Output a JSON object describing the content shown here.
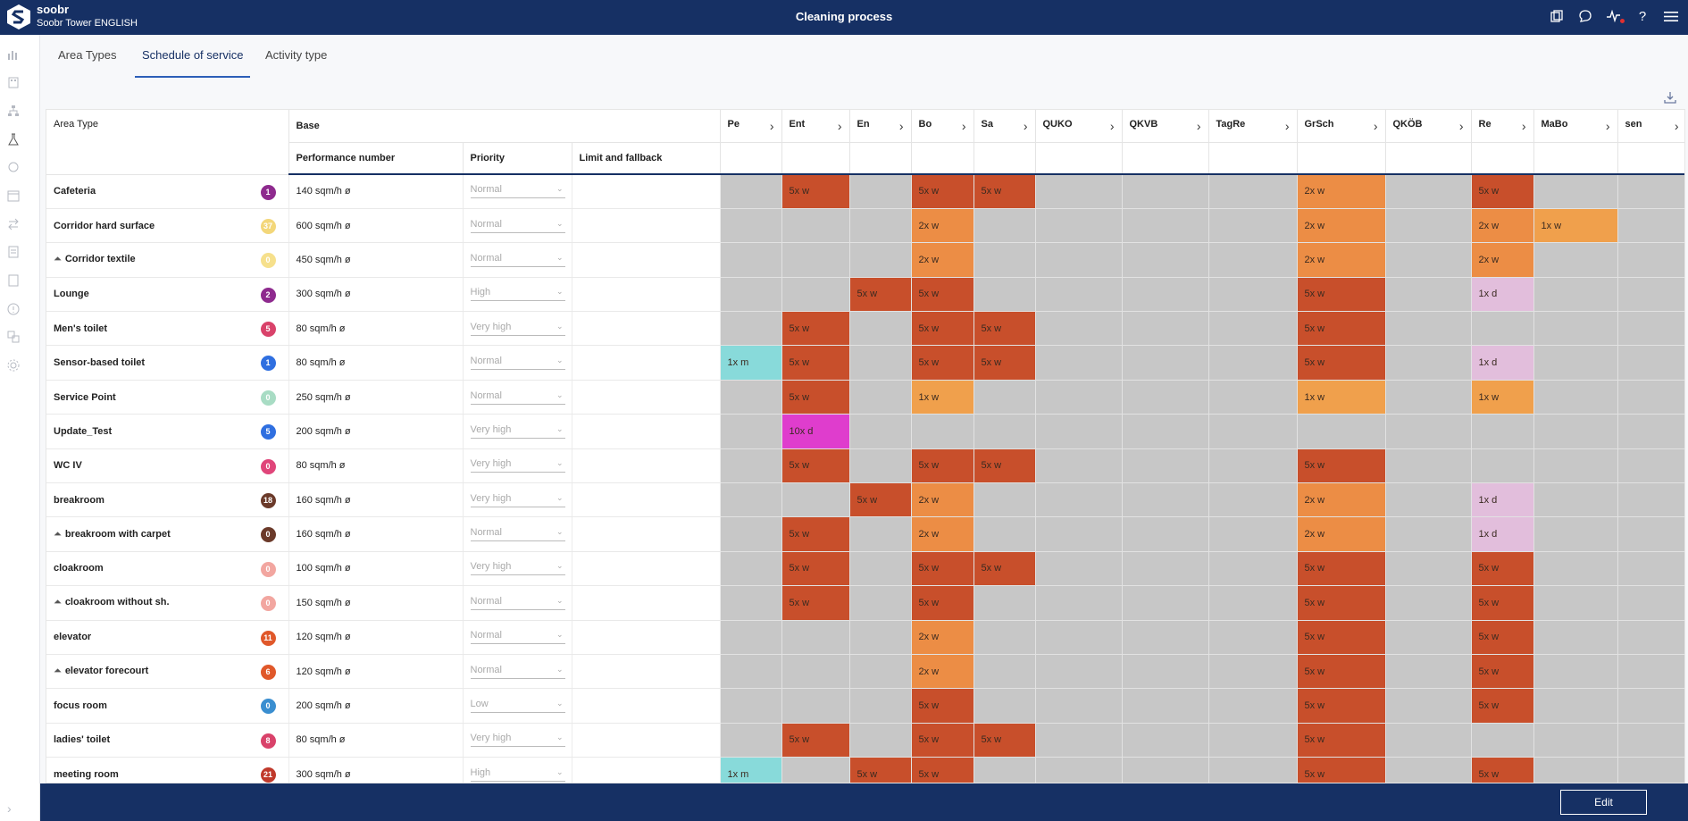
{
  "app": {
    "name": "soobr",
    "site": "Soobr Tower ENGLISH",
    "page_title": "Cleaning process"
  },
  "header_icons": [
    "copy-icon",
    "chat-icon",
    "activity-icon",
    "help-icon",
    "menu-icon"
  ],
  "tabs": [
    {
      "label": "Area Types",
      "active": false
    },
    {
      "label": "Schedule of service",
      "active": true
    },
    {
      "label": "Activity type",
      "active": false
    }
  ],
  "table": {
    "area_type_header": "Area Type",
    "base_header": "Base",
    "sub_headers": {
      "performance": "Performance number",
      "priority": "Priority",
      "limit": "Limit and fallback"
    },
    "activity_columns": [
      "Pe",
      "Ent",
      "En",
      "Bo",
      "Sa",
      "QUKO",
      "QKVB",
      "TagRe",
      "GrSch",
      "QKÖB",
      "Re",
      "MaBo",
      "sen"
    ],
    "rows": [
      {
        "name": "Cafeteria",
        "prefix": "",
        "count": "1",
        "count_color": "#8e2a8e",
        "perf": "140 sqm/h ø",
        "priority": "Normal",
        "cells": [
          [
            "",
            ""
          ],
          [
            "5x w",
            "dark"
          ],
          [
            "",
            ""
          ],
          [
            "5x w",
            "dark"
          ],
          [
            "5x w",
            "dark"
          ],
          [
            "",
            ""
          ],
          [
            "",
            ""
          ],
          [
            "",
            ""
          ],
          [
            "2x w",
            "orange"
          ],
          [
            "",
            ""
          ],
          [
            "5x w",
            "dark"
          ],
          [
            "",
            ""
          ],
          [
            "",
            ""
          ]
        ]
      },
      {
        "name": "Corridor hard surface",
        "prefix": "",
        "count": "37",
        "count_color": "#f3d77a",
        "perf": "600 sqm/h ø",
        "priority": "Normal",
        "cells": [
          [
            "",
            ""
          ],
          [
            "",
            ""
          ],
          [
            "",
            ""
          ],
          [
            "2x w",
            "orange"
          ],
          [
            "",
            ""
          ],
          [
            "",
            ""
          ],
          [
            "",
            ""
          ],
          [
            "",
            ""
          ],
          [
            "2x w",
            "orange"
          ],
          [
            "",
            ""
          ],
          [
            "2x w",
            "orange"
          ],
          [
            "1x w",
            "light"
          ],
          [
            "",
            ""
          ]
        ]
      },
      {
        "name": "Corridor textile",
        "prefix": "⏶",
        "count": "0",
        "count_color": "#f6e08c",
        "perf": "450 sqm/h ø",
        "priority": "Normal",
        "cells": [
          [
            "",
            ""
          ],
          [
            "",
            ""
          ],
          [
            "",
            ""
          ],
          [
            "2x w",
            "orange"
          ],
          [
            "",
            ""
          ],
          [
            "",
            ""
          ],
          [
            "",
            ""
          ],
          [
            "",
            ""
          ],
          [
            "2x w",
            "orange"
          ],
          [
            "",
            ""
          ],
          [
            "2x w",
            "orange"
          ],
          [
            "",
            ""
          ],
          [
            "",
            ""
          ]
        ]
      },
      {
        "name": "Lounge",
        "prefix": "",
        "count": "2",
        "count_color": "#8e2a8e",
        "perf": "300 sqm/h ø",
        "priority": "High",
        "cells": [
          [
            "",
            ""
          ],
          [
            "",
            ""
          ],
          [
            "5x w",
            "dark"
          ],
          [
            "5x w",
            "dark"
          ],
          [
            "",
            ""
          ],
          [
            "",
            ""
          ],
          [
            "",
            ""
          ],
          [
            "",
            ""
          ],
          [
            "5x w",
            "dark"
          ],
          [
            "",
            ""
          ],
          [
            "1x d",
            "pink"
          ],
          [
            "",
            ""
          ],
          [
            "",
            ""
          ]
        ]
      },
      {
        "name": "Men's toilet",
        "prefix": "",
        "count": "5",
        "count_color": "#d9426a",
        "perf": "80 sqm/h ø",
        "priority": "Very high",
        "cells": [
          [
            "",
            ""
          ],
          [
            "5x w",
            "dark"
          ],
          [
            "",
            ""
          ],
          [
            "5x w",
            "dark"
          ],
          [
            "5x w",
            "dark"
          ],
          [
            "",
            ""
          ],
          [
            "",
            ""
          ],
          [
            "",
            ""
          ],
          [
            "5x w",
            "dark"
          ],
          [
            "",
            ""
          ],
          [
            "",
            ""
          ],
          [
            "",
            ""
          ],
          [
            "",
            ""
          ]
        ]
      },
      {
        "name": "Sensor-based toilet",
        "prefix": "",
        "count": "1",
        "count_color": "#2f6fe0",
        "perf": "80 sqm/h ø",
        "priority": "Normal",
        "cells": [
          [
            "1x m",
            "cyan"
          ],
          [
            "5x w",
            "dark"
          ],
          [
            "",
            ""
          ],
          [
            "5x w",
            "dark"
          ],
          [
            "5x w",
            "dark"
          ],
          [
            "",
            ""
          ],
          [
            "",
            ""
          ],
          [
            "",
            ""
          ],
          [
            "5x w",
            "dark"
          ],
          [
            "",
            ""
          ],
          [
            "1x d",
            "pink"
          ],
          [
            "",
            ""
          ],
          [
            "",
            ""
          ]
        ]
      },
      {
        "name": "Service Point",
        "prefix": "",
        "count": "0",
        "count_color": "#a8dcc4",
        "perf": "250 sqm/h ø",
        "priority": "Normal",
        "cells": [
          [
            "",
            ""
          ],
          [
            "5x w",
            "dark"
          ],
          [
            "",
            ""
          ],
          [
            "1x w",
            "light"
          ],
          [
            "",
            ""
          ],
          [
            "",
            ""
          ],
          [
            "",
            ""
          ],
          [
            "",
            ""
          ],
          [
            "1x w",
            "light"
          ],
          [
            "",
            ""
          ],
          [
            "1x w",
            "light"
          ],
          [
            "",
            ""
          ],
          [
            "",
            ""
          ]
        ]
      },
      {
        "name": "Update_Test",
        "prefix": "",
        "count": "5",
        "count_color": "#2f6fe0",
        "perf": "200 sqm/h ø",
        "priority": "Very high",
        "cells": [
          [
            "",
            ""
          ],
          [
            "10x d",
            "magenta"
          ],
          [
            "",
            ""
          ],
          [
            "",
            ""
          ],
          [
            "",
            ""
          ],
          [
            "",
            ""
          ],
          [
            "",
            ""
          ],
          [
            "",
            ""
          ],
          [
            "",
            ""
          ],
          [
            "",
            ""
          ],
          [
            "",
            ""
          ],
          [
            "",
            ""
          ],
          [
            "",
            ""
          ]
        ]
      },
      {
        "name": "WC IV",
        "prefix": "",
        "count": "0",
        "count_color": "#e0457a",
        "perf": "80 sqm/h ø",
        "priority": "Very high",
        "cells": [
          [
            "",
            ""
          ],
          [
            "5x w",
            "dark"
          ],
          [
            "",
            ""
          ],
          [
            "5x w",
            "dark"
          ],
          [
            "5x w",
            "dark"
          ],
          [
            "",
            ""
          ],
          [
            "",
            ""
          ],
          [
            "",
            ""
          ],
          [
            "5x w",
            "dark"
          ],
          [
            "",
            ""
          ],
          [
            "",
            ""
          ],
          [
            "",
            ""
          ],
          [
            "",
            ""
          ]
        ]
      },
      {
        "name": "breakroom",
        "prefix": "",
        "count": "18",
        "count_color": "#6b3a2a",
        "perf": "160 sqm/h ø",
        "priority": "Very high",
        "cells": [
          [
            "",
            ""
          ],
          [
            "",
            ""
          ],
          [
            "5x w",
            "dark"
          ],
          [
            "2x w",
            "orange"
          ],
          [
            "",
            ""
          ],
          [
            "",
            ""
          ],
          [
            "",
            ""
          ],
          [
            "",
            ""
          ],
          [
            "2x w",
            "orange"
          ],
          [
            "",
            ""
          ],
          [
            "1x d",
            "pink"
          ],
          [
            "",
            ""
          ],
          [
            "",
            ""
          ]
        ]
      },
      {
        "name": "breakroom with carpet",
        "prefix": "⏶",
        "count": "0",
        "count_color": "#6b3a2a",
        "perf": "160 sqm/h ø",
        "priority": "Normal",
        "cells": [
          [
            "",
            ""
          ],
          [
            "5x w",
            "dark"
          ],
          [
            "",
            ""
          ],
          [
            "2x w",
            "orange"
          ],
          [
            "",
            ""
          ],
          [
            "",
            ""
          ],
          [
            "",
            ""
          ],
          [
            "",
            ""
          ],
          [
            "2x w",
            "orange"
          ],
          [
            "",
            ""
          ],
          [
            "1x d",
            "pink"
          ],
          [
            "",
            ""
          ],
          [
            "",
            ""
          ]
        ]
      },
      {
        "name": "cloakroom",
        "prefix": "",
        "count": "0",
        "count_color": "#f2a6a0",
        "perf": "100 sqm/h ø",
        "priority": "Very high",
        "cells": [
          [
            "",
            ""
          ],
          [
            "5x w",
            "dark"
          ],
          [
            "",
            ""
          ],
          [
            "5x w",
            "dark"
          ],
          [
            "5x w",
            "dark"
          ],
          [
            "",
            ""
          ],
          [
            "",
            ""
          ],
          [
            "",
            ""
          ],
          [
            "5x w",
            "dark"
          ],
          [
            "",
            ""
          ],
          [
            "5x w",
            "dark"
          ],
          [
            "",
            ""
          ],
          [
            "",
            ""
          ]
        ]
      },
      {
        "name": "cloakroom without sh.",
        "prefix": "⏶",
        "count": "0",
        "count_color": "#f2a6a0",
        "perf": "150 sqm/h ø",
        "priority": "Normal",
        "cells": [
          [
            "",
            ""
          ],
          [
            "5x w",
            "dark"
          ],
          [
            "",
            ""
          ],
          [
            "5x w",
            "dark"
          ],
          [
            "",
            ""
          ],
          [
            "",
            ""
          ],
          [
            "",
            ""
          ],
          [
            "",
            ""
          ],
          [
            "5x w",
            "dark"
          ],
          [
            "",
            ""
          ],
          [
            "5x w",
            "dark"
          ],
          [
            "",
            ""
          ],
          [
            "",
            ""
          ]
        ]
      },
      {
        "name": "elevator",
        "prefix": "",
        "count": "11",
        "count_color": "#e0582a",
        "perf": "120 sqm/h ø",
        "priority": "Normal",
        "cells": [
          [
            "",
            ""
          ],
          [
            "",
            ""
          ],
          [
            "",
            ""
          ],
          [
            "2x w",
            "orange"
          ],
          [
            "",
            ""
          ],
          [
            "",
            ""
          ],
          [
            "",
            ""
          ],
          [
            "",
            ""
          ],
          [
            "5x w",
            "dark"
          ],
          [
            "",
            ""
          ],
          [
            "5x w",
            "dark"
          ],
          [
            "",
            ""
          ],
          [
            "",
            ""
          ]
        ]
      },
      {
        "name": "elevator forecourt",
        "prefix": "⏶",
        "count": "6",
        "count_color": "#e0582a",
        "perf": "120 sqm/h ø",
        "priority": "Normal",
        "cells": [
          [
            "",
            ""
          ],
          [
            "",
            ""
          ],
          [
            "",
            ""
          ],
          [
            "2x w",
            "orange"
          ],
          [
            "",
            ""
          ],
          [
            "",
            ""
          ],
          [
            "",
            ""
          ],
          [
            "",
            ""
          ],
          [
            "5x w",
            "dark"
          ],
          [
            "",
            ""
          ],
          [
            "5x w",
            "dark"
          ],
          [
            "",
            ""
          ],
          [
            "",
            ""
          ]
        ]
      },
      {
        "name": "focus room",
        "prefix": "",
        "count": "0",
        "count_color": "#3a8ed0",
        "perf": "200 sqm/h ø",
        "priority": "Low",
        "cells": [
          [
            "",
            ""
          ],
          [
            "",
            ""
          ],
          [
            "",
            ""
          ],
          [
            "5x w",
            "dark"
          ],
          [
            "",
            ""
          ],
          [
            "",
            ""
          ],
          [
            "",
            ""
          ],
          [
            "",
            ""
          ],
          [
            "5x w",
            "dark"
          ],
          [
            "",
            ""
          ],
          [
            "5x w",
            "dark"
          ],
          [
            "",
            ""
          ],
          [
            "",
            ""
          ]
        ]
      },
      {
        "name": "ladies' toilet",
        "prefix": "",
        "count": "8",
        "count_color": "#d9426a",
        "perf": "80 sqm/h ø",
        "priority": "Very high",
        "cells": [
          [
            "",
            ""
          ],
          [
            "5x w",
            "dark"
          ],
          [
            "",
            ""
          ],
          [
            "5x w",
            "dark"
          ],
          [
            "5x w",
            "dark"
          ],
          [
            "",
            ""
          ],
          [
            "",
            ""
          ],
          [
            "",
            ""
          ],
          [
            "5x w",
            "dark"
          ],
          [
            "",
            ""
          ],
          [
            "",
            ""
          ],
          [
            "",
            ""
          ],
          [
            "",
            ""
          ]
        ]
      },
      {
        "name": "meeting room",
        "prefix": "",
        "count": "21",
        "count_color": "#c0392b",
        "perf": "300 sqm/h ø",
        "priority": "High",
        "cells": [
          [
            "1x m",
            "cyan"
          ],
          [
            "",
            ""
          ],
          [
            "5x w",
            "dark"
          ],
          [
            "5x w",
            "dark"
          ],
          [
            "",
            ""
          ],
          [
            "",
            ""
          ],
          [
            "",
            ""
          ],
          [
            "",
            ""
          ],
          [
            "5x w",
            "dark"
          ],
          [
            "",
            ""
          ],
          [
            "5x w",
            "dark"
          ],
          [
            "",
            ""
          ],
          [
            "",
            ""
          ]
        ]
      }
    ]
  },
  "footer": {
    "edit_label": "Edit"
  },
  "colors": {
    "navy": "#163064",
    "dark": "#c84f2b",
    "orange": "#ec8d45",
    "light": "#f0a04c",
    "pink": "#e2bedc",
    "cyan": "#88dada",
    "magenta": "#df3dcd",
    "empty": "#c7c7c7"
  }
}
